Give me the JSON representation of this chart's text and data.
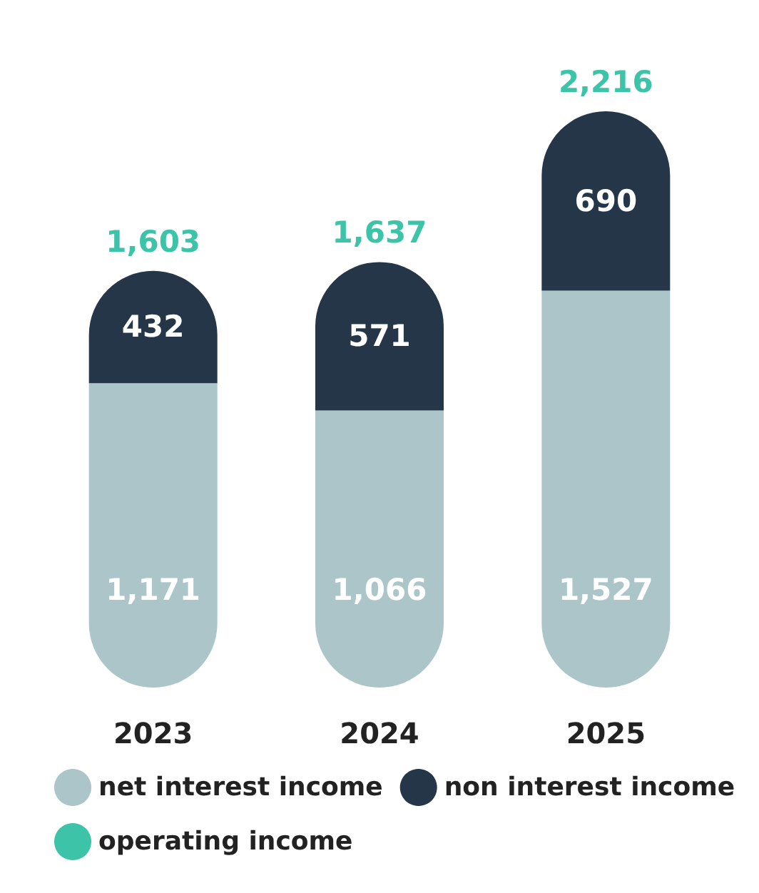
{
  "chart_data": {
    "type": "bar",
    "stacked": true,
    "categories": [
      "2023",
      "2024",
      "2025"
    ],
    "series": [
      {
        "name": "net interest income",
        "color": "#abc5c8",
        "values": [
          1171,
          1066,
          1527
        ],
        "value_labels": [
          "1,171",
          "1,066",
          "1,527"
        ]
      },
      {
        "name": "non interest income",
        "color": "#243647",
        "values": [
          432,
          571,
          690
        ],
        "value_labels": [
          "432",
          "571",
          "690"
        ]
      },
      {
        "name": "operating income",
        "color": "#3dc4a8",
        "values": [
          null,
          null,
          null
        ]
      }
    ],
    "totals": [
      "1,603",
      "1,637",
      "2,216"
    ],
    "legend": "bottom"
  }
}
